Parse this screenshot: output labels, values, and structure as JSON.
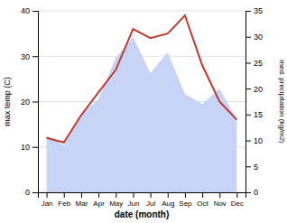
{
  "chart_data": {
    "type": "line",
    "xlabel": "date (month)",
    "ylabel": "max temp (C)",
    "y2label": "med. precipitation (kg/m2)",
    "categories": [
      "Jan",
      "Feb",
      "Mar",
      "Apr",
      "May",
      "Jun",
      "Jul",
      "Aug",
      "Sep",
      "Oct",
      "Nov",
      "Dec"
    ],
    "series": [
      {
        "type": "line",
        "color": "#c0392b",
        "values": [
          12,
          11,
          17,
          22,
          27,
          36,
          34,
          35,
          39,
          28,
          20,
          16
        ]
      },
      {
        "type": "area",
        "axis": "y2",
        "color": "#c8d4f5",
        "values": [
          11,
          9,
          15,
          18,
          26,
          30,
          23,
          27,
          19,
          17,
          20,
          14
        ]
      }
    ],
    "ylim": [
      0,
      40
    ],
    "yticks": [
      0,
      10,
      20,
      30,
      40
    ],
    "y2lim": [
      0,
      35
    ],
    "y2ticks": [
      0,
      5,
      10,
      15,
      20,
      25,
      30,
      35
    ],
    "grid": true
  }
}
